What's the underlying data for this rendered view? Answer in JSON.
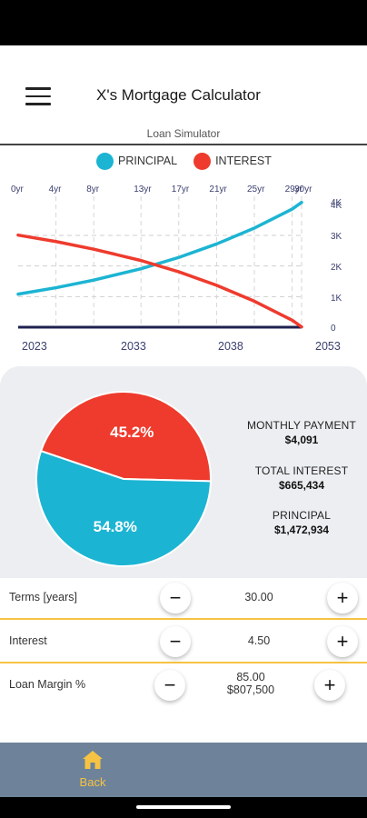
{
  "app": {
    "title": "X's Mortgage Calculator",
    "subtitle": "Loan Simulator"
  },
  "chart": {
    "legend": [
      {
        "label": "PRINCIPAL",
        "color": "#1cb4d3"
      },
      {
        "label": "INTEREST",
        "color": "#ee3b2d"
      }
    ],
    "top_ticks": [
      "0yr",
      "4yr",
      "8yr",
      "13yr",
      "17yr",
      "21yr",
      "25yr",
      "29yr",
      "30yr"
    ],
    "bottom_ticks": [
      "2023",
      "2033",
      "2038",
      "2053"
    ],
    "y_ticks": [
      "4K",
      "4K",
      "3K",
      "2K",
      "1K",
      "0"
    ]
  },
  "chart_data": {
    "type": "line",
    "x": [
      0,
      4,
      8,
      13,
      17,
      21,
      25,
      29,
      30
    ],
    "series": [
      {
        "name": "PRINCIPAL",
        "color": "#1cb4d3",
        "values": [
          1080,
          1290,
          1540,
          1910,
          2280,
          2720,
          3240,
          3860,
          4080
        ]
      },
      {
        "name": "INTEREST",
        "color": "#ee3b2d",
        "values": [
          3010,
          2800,
          2550,
          2180,
          1810,
          1370,
          850,
          230,
          10
        ]
      }
    ],
    "ylim": [
      0,
      4100
    ],
    "xlim": [
      0,
      30
    ],
    "grid": true
  },
  "summary": {
    "pie": [
      {
        "label": "45.2%",
        "value": 45.2,
        "color": "#ee3b2d"
      },
      {
        "label": "54.8%",
        "value": 54.8,
        "color": "#1cb4d3"
      }
    ],
    "monthly_payment_label": "MONTHLY PAYMENT",
    "monthly_payment_value": "$4,091",
    "total_interest_label": "TOTAL INTEREST",
    "total_interest_value": "$665,434",
    "principal_label": "PRINCIPAL",
    "principal_value": "$1,472,934"
  },
  "inputs": {
    "terms": {
      "label": "Terms [years]",
      "value": "30.00"
    },
    "interest": {
      "label": "Interest",
      "value": "4.50"
    },
    "loan_margin": {
      "label": "Loan Margin %",
      "value": "85.00",
      "amount": "$807,500"
    },
    "minus": "−",
    "plus": "+"
  },
  "nav": {
    "back_label": "Back"
  }
}
